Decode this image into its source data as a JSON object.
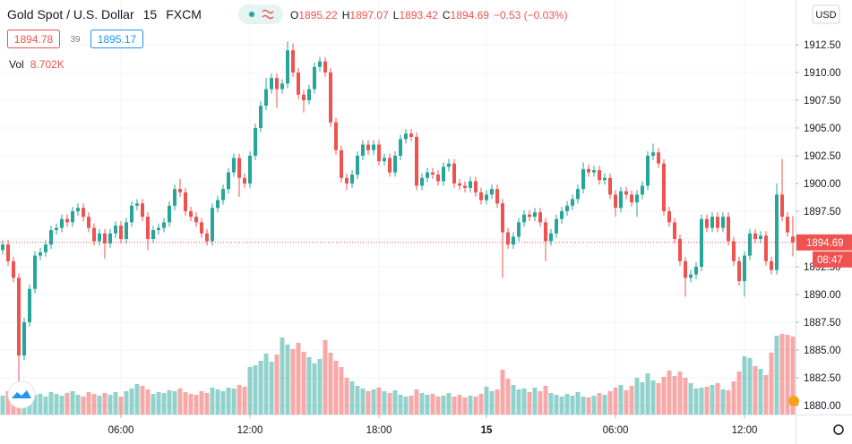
{
  "chart_data": {
    "type": "candlestick",
    "title": "Gold Spot / U.S. Dollar",
    "interval": "15",
    "source": "FXCM",
    "ohlc_prefixes": [
      "O",
      "H",
      "L",
      "C"
    ],
    "change_label": "−0.53 (−0.03%)",
    "bid": 1894.78,
    "spread": 39,
    "ask": 1895.17,
    "volume_title": "Vol",
    "volume_label": "8.702K",
    "currency": "USD",
    "countdown": "08:47",
    "up_color": "#26a69a",
    "down_color": "#ef5350",
    "grid": true,
    "xlim": [
      -0.5,
      147.5
    ],
    "xticks": [
      {
        "value": 22,
        "label": "06:00"
      },
      {
        "value": 46,
        "label": "12:00"
      },
      {
        "value": 70,
        "label": "18:00"
      },
      {
        "value": 90,
        "label": "15"
      },
      {
        "value": 114,
        "label": "06:00"
      },
      {
        "value": 138,
        "label": "12:00"
      }
    ],
    "ylim": [
      1879.19,
      1916.53
    ],
    "yticks": [
      {
        "value": 1880,
        "label": "1880.00"
      },
      {
        "value": 1882.5,
        "label": "1882.50"
      },
      {
        "value": 1885,
        "label": "1885.00"
      },
      {
        "value": 1887.5,
        "label": "1887.50"
      },
      {
        "value": 1890,
        "label": "1890.00"
      },
      {
        "value": 1892.5,
        "label": "1892.50"
      },
      {
        "value": 1895,
        "label": "1895.00"
      },
      {
        "value": 1897.5,
        "label": "1897.50"
      },
      {
        "value": 1900,
        "label": "1900.00"
      },
      {
        "value": 1902.5,
        "label": "1902.50"
      },
      {
        "value": 1905,
        "label": "1905.00"
      },
      {
        "value": 1907.5,
        "label": "1907.50"
      },
      {
        "value": 1910,
        "label": "1910.00"
      },
      {
        "value": 1912.5,
        "label": "1912.50"
      }
    ],
    "open": [
      1894.0,
      1894.5,
      1893.0,
      1891.5,
      1884.5,
      1887.5,
      1890.5,
      1893.5,
      1893.8,
      1894.5,
      1895.8,
      1896.0,
      1896.8,
      1896.5,
      1897.5,
      1897.8,
      1897.0,
      1896.0,
      1894.8,
      1895.5,
      1894.6,
      1895.5,
      1896.2,
      1895.0,
      1896.5,
      1898.0,
      1898.2,
      1897.0,
      1895.0,
      1895.8,
      1896.0,
      1896.5,
      1898.0,
      1899.5,
      1899.2,
      1897.5,
      1897.0,
      1896.5,
      1895.5,
      1894.8,
      1897.8,
      1898.5,
      1899.5,
      1901.0,
      1902.3,
      1900.5,
      1900.0,
      1902.5,
      1905.0,
      1907.0,
      1908.5,
      1909.5,
      1908.5,
      1909.0,
      1912.0,
      1910.0,
      1908.0,
      1907.5,
      1908.5,
      1910.5,
      1911.0,
      1910.0,
      1905.5,
      1903.0,
      1900.5,
      1900.0,
      1900.8,
      1902.5,
      1903.5,
      1903.0,
      1903.5,
      1902.0,
      1902.3,
      1901.0,
      1902.5,
      1904.0,
      1904.5,
      1904.2,
      1899.8,
      1900.5,
      1901.0,
      1900.8,
      1900.2,
      1901.5,
      1901.8,
      1900.0,
      1899.8,
      1899.6,
      1900.2,
      1899.2,
      1898.5,
      1899.0,
      1899.5,
      1898.2,
      1895.6,
      1894.5,
      1895.2,
      1896.5,
      1897.2,
      1897.0,
      1897.4,
      1896.5,
      1894.8,
      1895.5,
      1896.8,
      1897.5,
      1898.0,
      1898.6,
      1899.5,
      1901.3,
      1901.0,
      1901.2,
      1900.3,
      1900.5,
      1899.0,
      1897.8,
      1899.3,
      1899.0,
      1898.3,
      1899.0,
      1899.8,
      1902.5,
      1902.8,
      1901.8,
      1897.5,
      1896.5,
      1895.0,
      1893.0,
      1891.5,
      1891.8,
      1892.5,
      1896.8,
      1896.0,
      1897.0,
      1896.0,
      1897.0,
      1894.8,
      1893.0,
      1891.2,
      1893.5,
      1895.5,
      1895.0,
      1895.3,
      1893.0,
      1892.2,
      1899.0,
      1897.0,
      1895.22
    ],
    "high": [
      1894.9,
      1894.9,
      1893.4,
      1891.9,
      1887.9,
      1890.9,
      1893.9,
      1894.2,
      1894.9,
      1896.2,
      1896.4,
      1897.2,
      1897.2,
      1897.9,
      1898.2,
      1898.2,
      1897.4,
      1896.4,
      1895.9,
      1895.9,
      1895.9,
      1896.6,
      1896.6,
      1896.9,
      1898.4,
      1898.6,
      1898.6,
      1897.4,
      1896.2,
      1896.4,
      1896.9,
      1898.4,
      1899.9,
      1900.4,
      1899.6,
      1897.9,
      1897.4,
      1896.9,
      1895.9,
      1898.2,
      1898.9,
      1899.9,
      1901.4,
      1902.7,
      1902.7,
      1900.9,
      1902.9,
      1905.4,
      1907.4,
      1909.5,
      1909.9,
      1909.9,
      1909.4,
      1912.8,
      1912.6,
      1910.4,
      1908.4,
      1908.9,
      1910.9,
      1911.4,
      1911.4,
      1910.4,
      1905.9,
      1903.4,
      1900.9,
      1901.2,
      1902.9,
      1903.9,
      1903.9,
      1903.9,
      1903.9,
      1902.7,
      1902.7,
      1902.9,
      1904.4,
      1904.9,
      1904.9,
      1904.6,
      1900.9,
      1901.4,
      1901.4,
      1901.2,
      1901.9,
      1902.2,
      1902.2,
      1900.4,
      1900.2,
      1900.6,
      1900.6,
      1899.6,
      1899.4,
      1899.9,
      1899.9,
      1898.6,
      1896.0,
      1895.6,
      1896.9,
      1897.6,
      1897.6,
      1897.8,
      1897.8,
      1896.9,
      1895.9,
      1897.2,
      1897.9,
      1898.4,
      1899.0,
      1899.9,
      1901.9,
      1901.7,
      1901.6,
      1901.6,
      1900.9,
      1900.9,
      1899.4,
      1899.7,
      1899.7,
      1899.4,
      1899.4,
      1900.2,
      1902.9,
      1903.6,
      1903.2,
      1902.2,
      1897.9,
      1896.9,
      1895.4,
      1893.4,
      1892.2,
      1892.9,
      1897.2,
      1897.2,
      1897.4,
      1897.4,
      1897.4,
      1897.4,
      1895.2,
      1893.4,
      1893.9,
      1895.9,
      1895.9,
      1895.7,
      1895.7,
      1893.4,
      1900.0,
      1902.2,
      1897.4,
      1897.07
    ],
    "low": [
      1893.6,
      1892.6,
      1891.1,
      1880.5,
      1884.1,
      1887.1,
      1890.1,
      1893.1,
      1893.4,
      1894.1,
      1895.4,
      1895.6,
      1896.1,
      1896.1,
      1897.1,
      1896.6,
      1895.6,
      1894.4,
      1894.4,
      1893.2,
      1894.2,
      1895.1,
      1894.6,
      1894.6,
      1896.1,
      1897.6,
      1896.6,
      1894.0,
      1894.6,
      1895.4,
      1895.6,
      1896.1,
      1897.6,
      1898.8,
      1897.1,
      1896.6,
      1896.1,
      1895.1,
      1894.4,
      1894.4,
      1897.4,
      1898.1,
      1899.1,
      1900.6,
      1898.8,
      1899.6,
      1899.6,
      1902.1,
      1904.6,
      1906.6,
      1908.1,
      1906.8,
      1908.1,
      1908.6,
      1909.6,
      1907.6,
      1906.4,
      1907.1,
      1908.1,
      1910.1,
      1909.6,
      1905.1,
      1902.6,
      1900.1,
      1899.4,
      1899.6,
      1900.4,
      1902.1,
      1902.6,
      1902.6,
      1901.6,
      1901.6,
      1900.6,
      1900.6,
      1902.1,
      1903.6,
      1903.8,
      1899.4,
      1899.4,
      1900.1,
      1900.4,
      1899.8,
      1899.8,
      1901.1,
      1899.6,
      1899.4,
      1899.2,
      1899.2,
      1898.8,
      1898.1,
      1898.1,
      1898.6,
      1897.8,
      1891.5,
      1894.1,
      1894.1,
      1894.8,
      1896.1,
      1896.6,
      1896.6,
      1896.1,
      1893.0,
      1894.4,
      1895.1,
      1896.4,
      1897.1,
      1897.6,
      1898.2,
      1899.1,
      1900.6,
      1900.6,
      1899.9,
      1899.9,
      1898.6,
      1897.0,
      1897.4,
      1898.6,
      1897.9,
      1897.0,
      1898.6,
      1899.4,
      1902.1,
      1901.4,
      1897.1,
      1896.1,
      1894.6,
      1892.6,
      1889.8,
      1891.1,
      1891.4,
      1892.1,
      1895.6,
      1895.6,
      1895.6,
      1895.6,
      1894.4,
      1892.6,
      1890.8,
      1889.8,
      1893.1,
      1894.6,
      1894.6,
      1892.6,
      1891.8,
      1891.8,
      1896.6,
      1895.2,
      1893.42
    ],
    "close": [
      1894.5,
      1893.0,
      1891.5,
      1884.5,
      1887.5,
      1890.5,
      1893.5,
      1893.8,
      1894.5,
      1895.8,
      1896.0,
      1896.8,
      1896.5,
      1897.5,
      1897.8,
      1897.0,
      1896.0,
      1894.8,
      1895.5,
      1894.6,
      1895.5,
      1896.2,
      1895.0,
      1896.5,
      1898.0,
      1898.2,
      1897.0,
      1895.0,
      1895.8,
      1896.0,
      1896.5,
      1898.0,
      1899.5,
      1899.2,
      1897.5,
      1897.0,
      1896.5,
      1895.5,
      1894.8,
      1897.8,
      1898.5,
      1899.5,
      1901.0,
      1902.3,
      1900.5,
      1900.0,
      1902.5,
      1905.0,
      1907.0,
      1908.5,
      1909.5,
      1908.5,
      1909.0,
      1912.0,
      1910.0,
      1908.0,
      1907.5,
      1908.5,
      1910.5,
      1911.0,
      1910.0,
      1905.5,
      1903.0,
      1900.5,
      1900.0,
      1900.8,
      1902.5,
      1903.5,
      1903.0,
      1903.5,
      1902.0,
      1902.3,
      1901.0,
      1902.5,
      1904.0,
      1904.5,
      1904.2,
      1899.8,
      1900.5,
      1901.0,
      1900.8,
      1900.2,
      1901.5,
      1901.8,
      1900.0,
      1899.8,
      1899.6,
      1900.2,
      1899.2,
      1898.5,
      1899.0,
      1899.5,
      1898.2,
      1895.6,
      1894.5,
      1895.2,
      1896.5,
      1897.2,
      1897.0,
      1897.4,
      1896.5,
      1894.8,
      1895.5,
      1896.8,
      1897.5,
      1898.0,
      1898.6,
      1899.5,
      1901.3,
      1901.0,
      1901.2,
      1900.3,
      1900.5,
      1899.0,
      1897.8,
      1899.3,
      1899.0,
      1898.3,
      1899.0,
      1899.8,
      1902.5,
      1902.8,
      1901.8,
      1897.5,
      1896.5,
      1895.0,
      1893.0,
      1891.5,
      1891.8,
      1892.5,
      1896.8,
      1896.0,
      1897.0,
      1896.0,
      1897.0,
      1894.8,
      1893.0,
      1891.2,
      1893.5,
      1895.5,
      1895.0,
      1895.3,
      1893.0,
      1892.2,
      1899.0,
      1897.0,
      1895.6,
      1894.69
    ],
    "volume": [
      2100,
      2600,
      2400,
      3500,
      2800,
      2500,
      2200,
      2300,
      2000,
      2500,
      2300,
      2100,
      2400,
      2600,
      2200,
      2000,
      2500,
      2300,
      2100,
      2400,
      2200,
      2500,
      2000,
      2600,
      2900,
      3400,
      3200,
      2800,
      2300,
      2500,
      2400,
      2700,
      2600,
      2900,
      2500,
      2300,
      2200,
      2600,
      2400,
      3000,
      2800,
      2600,
      3000,
      2900,
      3300,
      3100,
      5300,
      5500,
      6000,
      6800,
      5900,
      6700,
      8600,
      7800,
      7300,
      8000,
      7000,
      6400,
      5700,
      6200,
      8300,
      6900,
      6000,
      5300,
      4100,
      3700,
      3200,
      2900,
      2600,
      2800,
      3000,
      2600,
      2400,
      2700,
      2200,
      2000,
      2100,
      2800,
      2400,
      2200,
      2300,
      2000,
      2100,
      2400,
      2000,
      2200,
      1900,
      2100,
      2000,
      2300,
      3100,
      2600,
      2800,
      5000,
      4000,
      3300,
      2800,
      2900,
      2500,
      3000,
      2600,
      3200,
      2400,
      2200,
      2000,
      2300,
      2100,
      2500,
      2000,
      1900,
      2100,
      2400,
      2200,
      2600,
      3000,
      3300,
      2700,
      3200,
      4100,
      3600,
      4600,
      3800,
      3500,
      4200,
      4900,
      4300,
      4800,
      4100,
      3500,
      2900,
      3000,
      3100,
      3300,
      3500,
      2800,
      2700,
      3700,
      4800,
      6500,
      6300,
      5400,
      5100,
      4400,
      6900,
      8800,
      9000,
      8900,
      8702
    ]
  }
}
